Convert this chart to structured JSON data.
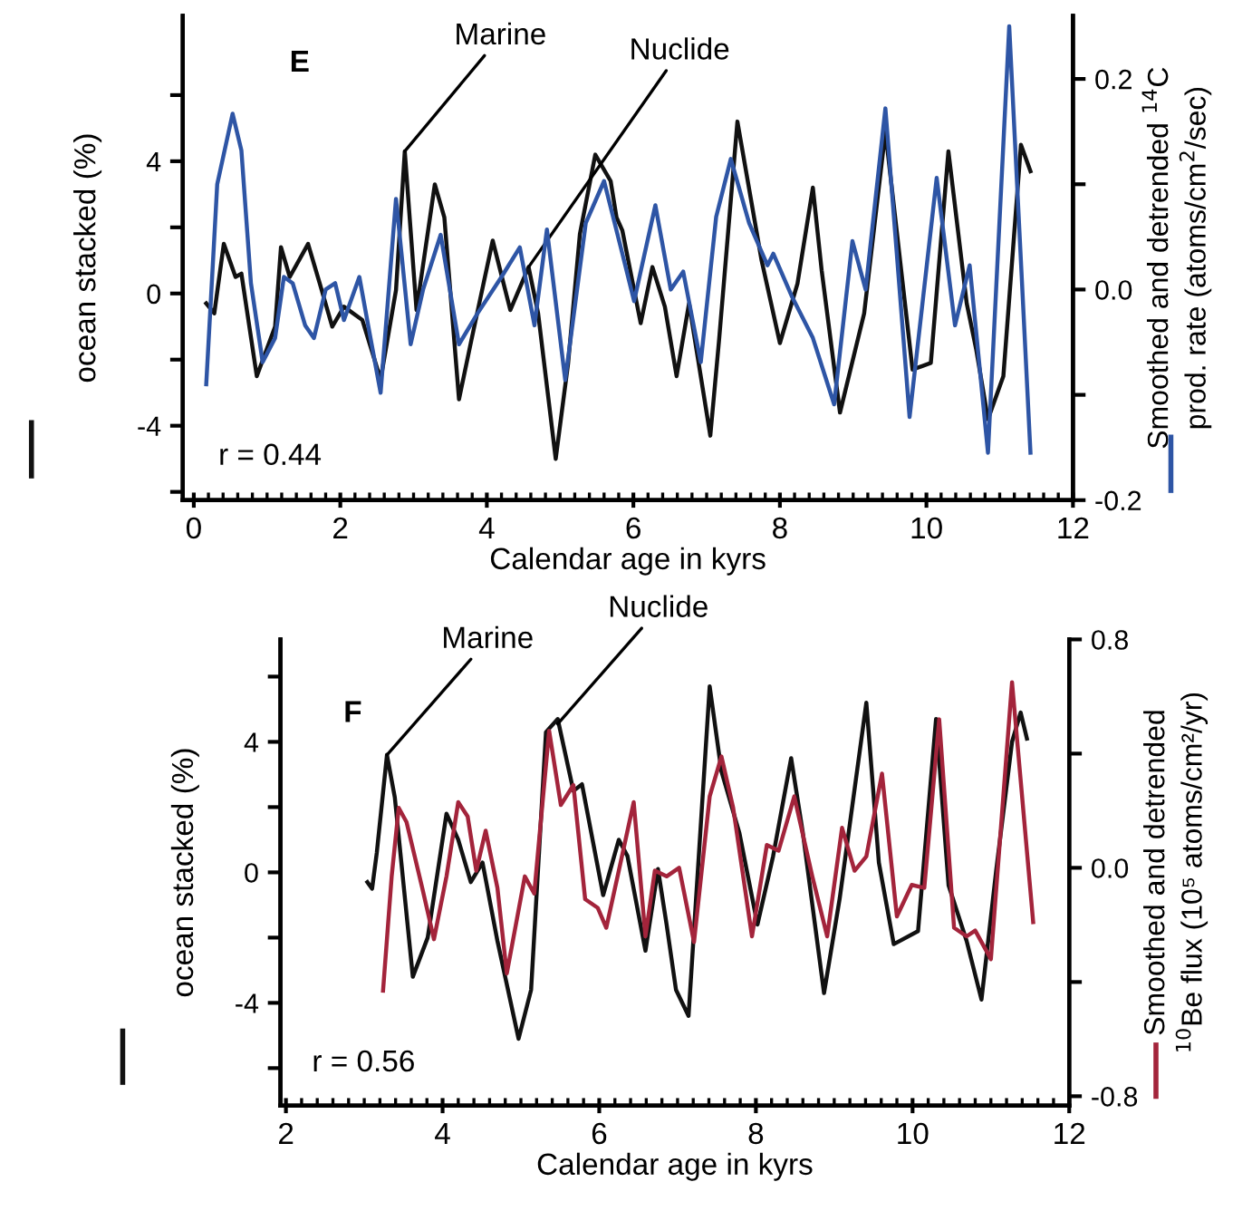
{
  "chart_data": [
    {
      "type": "line",
      "xlabel": "Calendar age in kyrs",
      "ylabel": "ocean stacked (%)",
      "y2label": "Smoothed and detrended $^{14}$C\nprod. rate (atoms/cm$^{2}$/sec)",
      "annotations": [
        "E",
        "r = 0.44",
        {
          "text": "Marine",
          "x": 2.88,
          "y": 4.3
        },
        {
          "text": "Nuclide",
          "x": 4.57,
          "y": 0.8
        }
      ],
      "xlim": [
        -0.15,
        12
      ],
      "ylim": [
        -6.25,
        8.4
      ],
      "y2lim": [
        -0.2,
        0.26
      ],
      "xticks": [
        0,
        2,
        4,
        6,
        8,
        10,
        12,
        {
          "value": 0.2,
          "label": null
        },
        {
          "value": 0.4,
          "label": null
        },
        {
          "value": 0.6,
          "label": null
        },
        {
          "value": 0.8,
          "label": null
        },
        {
          "value": 1,
          "label": null
        },
        {
          "value": 1.2,
          "label": null
        },
        {
          "value": 1.4,
          "label": null
        },
        {
          "value": 1.6,
          "label": null
        },
        {
          "value": 1.8,
          "label": null
        },
        {
          "value": 2.2,
          "label": null
        },
        {
          "value": 2.4,
          "label": null
        },
        {
          "value": 2.6,
          "label": null
        },
        {
          "value": 2.8,
          "label": null
        },
        {
          "value": 3,
          "label": null
        },
        {
          "value": 3.2,
          "label": null
        },
        {
          "value": 3.4,
          "label": null
        },
        {
          "value": 3.6,
          "label": null
        },
        {
          "value": 3.8,
          "label": null
        },
        {
          "value": 4.2,
          "label": null
        },
        {
          "value": 4.4,
          "label": null
        },
        {
          "value": 4.6,
          "label": null
        },
        {
          "value": 4.8,
          "label": null
        },
        {
          "value": 5,
          "label": null
        },
        {
          "value": 5.2,
          "label": null
        },
        {
          "value": 5.4,
          "label": null
        },
        {
          "value": 5.6,
          "label": null
        },
        {
          "value": 5.8,
          "label": null
        },
        {
          "value": 6.2,
          "label": null
        },
        {
          "value": 6.4,
          "label": null
        },
        {
          "value": 6.6,
          "label": null
        },
        {
          "value": 6.8,
          "label": null
        },
        {
          "value": 7,
          "label": null
        },
        {
          "value": 7.2,
          "label": null
        },
        {
          "value": 7.4,
          "label": null
        },
        {
          "value": 7.6,
          "label": null
        },
        {
          "value": 7.8,
          "label": null
        },
        {
          "value": 8.2,
          "label": null
        },
        {
          "value": 8.4,
          "label": null
        },
        {
          "value": 8.6,
          "label": null
        },
        {
          "value": 8.8,
          "label": null
        },
        {
          "value": 9,
          "label": null
        },
        {
          "value": 9.2,
          "label": null
        },
        {
          "value": 9.4,
          "label": null
        },
        {
          "value": 9.6,
          "label": null
        },
        {
          "value": 9.8,
          "label": null
        },
        {
          "value": 10.2,
          "label": null
        },
        {
          "value": 10.4,
          "label": null
        },
        {
          "value": 10.6,
          "label": null
        },
        {
          "value": 10.8,
          "label": null
        },
        {
          "value": 11,
          "label": null
        },
        {
          "value": 11.2,
          "label": null
        },
        {
          "value": 11.4,
          "label": null
        },
        {
          "value": 11.6,
          "label": null
        },
        {
          "value": 11.8,
          "label": null
        }
      ],
      "yticks": [
        {
          "value": -6,
          "label": null
        },
        -4,
        {
          "value": -2,
          "label": null
        },
        0,
        {
          "value": 2,
          "label": null
        },
        4,
        {
          "value": 6,
          "label": null
        }
      ],
      "y2ticks": [
        {
          "value": -0.2,
          "label": "-0.2"
        },
        {
          "value": -0.1,
          "label": null
        },
        {
          "value": 0,
          "label": "0.0"
        },
        {
          "value": 0.1,
          "label": null
        },
        {
          "value": 0.2,
          "label": "0.2"
        }
      ],
      "grid": false,
      "legend": false,
      "line_style": "solid",
      "marker": "none",
      "series": [
        {
          "color": "#111111",
          "x": [
            0.17,
            0.28,
            0.41,
            0.49,
            0.57,
            0.65,
            0.86,
            1.11,
            1.19,
            1.31,
            1.56,
            1.72,
            1.89,
            2.05,
            2.3,
            2.55,
            2.76,
            2.88,
            3.04,
            3.29,
            3.42,
            3.62,
            3.79,
            4.08,
            4.32,
            4.57,
            4.7,
            4.94,
            5.11,
            5.27,
            5.48,
            5.69,
            5.77,
            5.85,
            6.1,
            6.26,
            6.43,
            6.59,
            6.76,
            7.05,
            7.17,
            7.42,
            7.75,
            8.0,
            8.24,
            8.45,
            8.57,
            8.82,
            9.15,
            9.44,
            9.81,
            10.06,
            10.3,
            10.55,
            10.68,
            10.84,
            11.05,
            11.29,
            11.42
          ],
          "values": [
            -0.3,
            -0.6,
            1.5,
            1.0,
            0.5,
            0.6,
            -2.5,
            -1.0,
            1.4,
            0.5,
            1.5,
            0.3,
            -1.0,
            -0.4,
            -0.8,
            -2.6,
            0.1,
            4.3,
            -0.5,
            3.3,
            2.3,
            -3.2,
            -1.4,
            1.6,
            -0.5,
            0.8,
            -0.6,
            -5.0,
            -2.1,
            1.8,
            4.2,
            3.4,
            2.3,
            1.9,
            -0.9,
            0.8,
            -0.4,
            -2.5,
            -0.3,
            -4.3,
            -1.4,
            5.2,
            1.0,
            -1.5,
            0.3,
            3.2,
            0.7,
            -3.6,
            -0.6,
            4.9,
            -2.3,
            -2.1,
            4.3,
            -0.3,
            -1.7,
            -3.8,
            -2.5,
            4.5,
            3.7
          ]
        },
        {
          "color": "#2e55a5",
          "axis": "y2",
          "x": [
            0.17,
            0.32,
            0.53,
            0.65,
            0.78,
            0.94,
            1.11,
            1.23,
            1.35,
            1.52,
            1.64,
            1.8,
            1.93,
            2.05,
            2.26,
            2.38,
            2.55,
            2.76,
            2.96,
            3.13,
            3.37,
            3.62,
            3.87,
            4.2,
            4.45,
            4.65,
            4.82,
            5.07,
            5.35,
            5.6,
            5.85,
            6.01,
            6.3,
            6.51,
            6.68,
            6.92,
            7.13,
            7.33,
            7.58,
            7.83,
            7.91,
            8.16,
            8.45,
            8.74,
            8.99,
            9.17,
            9.44,
            9.77,
            10.14,
            10.39,
            10.59,
            10.84,
            11.13,
            11.42
          ],
          "values": [
            -0.09,
            0.1,
            0.167,
            0.132,
            0.006,
            -0.069,
            -0.046,
            0.012,
            0.006,
            -0.034,
            -0.046,
            0.0,
            0.006,
            -0.029,
            0.012,
            -0.034,
            -0.098,
            0.086,
            -0.052,
            0.0,
            0.052,
            -0.052,
            -0.023,
            0.012,
            0.04,
            -0.034,
            0.057,
            -0.086,
            0.063,
            0.103,
            0.034,
            -0.011,
            0.08,
            0.0,
            0.017,
            -0.069,
            0.069,
            0.124,
            0.063,
            0.023,
            0.034,
            -0.006,
            -0.046,
            -0.109,
            0.046,
            0.0,
            0.172,
            -0.121,
            0.106,
            -0.034,
            0.023,
            -0.155,
            0.25,
            -0.155
          ]
        }
      ]
    },
    {
      "type": "line",
      "xlabel": "Calendar age in kyrs",
      "ylabel": "ocean stacked (%)",
      "y2label": "Smoothed and detrended\n$^{10}$Be flux (10⁵ atoms/cm²/yr)",
      "annotations": [
        "F",
        "r = 0.56",
        {
          "text": "Marine",
          "x": 3.29,
          "y": 3.6
        },
        {
          "text": "Nuclide",
          "x": 5.47,
          "y": 4.55
        }
      ],
      "xlim": [
        1.93,
        12
      ],
      "ylim": [
        -7.15,
        7.14
      ],
      "y2lim": [
        -0.833,
        0.8
      ],
      "xticks": [
        2,
        4,
        6,
        8,
        10,
        12,
        {
          "value": 2.2,
          "label": null
        },
        {
          "value": 2.4,
          "label": null
        },
        {
          "value": 2.6,
          "label": null
        },
        {
          "value": 2.8,
          "label": null
        },
        {
          "value": 3,
          "label": null
        },
        {
          "value": 3.2,
          "label": null
        },
        {
          "value": 3.4,
          "label": null
        },
        {
          "value": 3.6,
          "label": null
        },
        {
          "value": 3.8,
          "label": null
        },
        {
          "value": 4.2,
          "label": null
        },
        {
          "value": 4.4,
          "label": null
        },
        {
          "value": 4.6,
          "label": null
        },
        {
          "value": 4.8,
          "label": null
        },
        {
          "value": 5,
          "label": null
        },
        {
          "value": 5.2,
          "label": null
        },
        {
          "value": 5.4,
          "label": null
        },
        {
          "value": 5.6,
          "label": null
        },
        {
          "value": 5.8,
          "label": null
        },
        {
          "value": 6.2,
          "label": null
        },
        {
          "value": 6.4,
          "label": null
        },
        {
          "value": 6.6,
          "label": null
        },
        {
          "value": 6.8,
          "label": null
        },
        {
          "value": 7,
          "label": null
        },
        {
          "value": 7.2,
          "label": null
        },
        {
          "value": 7.4,
          "label": null
        },
        {
          "value": 7.6,
          "label": null
        },
        {
          "value": 7.8,
          "label": null
        },
        {
          "value": 8.2,
          "label": null
        },
        {
          "value": 8.4,
          "label": null
        },
        {
          "value": 8.6,
          "label": null
        },
        {
          "value": 8.8,
          "label": null
        },
        {
          "value": 9,
          "label": null
        },
        {
          "value": 9.2,
          "label": null
        },
        {
          "value": 9.4,
          "label": null
        },
        {
          "value": 9.6,
          "label": null
        },
        {
          "value": 9.8,
          "label": null
        },
        {
          "value": 10.2,
          "label": null
        },
        {
          "value": 10.4,
          "label": null
        },
        {
          "value": 10.6,
          "label": null
        },
        {
          "value": 10.8,
          "label": null
        },
        {
          "value": 11,
          "label": null
        },
        {
          "value": 11.2,
          "label": null
        },
        {
          "value": 11.4,
          "label": null
        },
        {
          "value": 11.6,
          "label": null
        },
        {
          "value": 11.8,
          "label": null
        }
      ],
      "yticks": [
        {
          "value": -6,
          "label": null
        },
        -4,
        {
          "value": -2,
          "label": null
        },
        0,
        {
          "value": 2,
          "label": null
        },
        4,
        {
          "value": 6,
          "label": null
        }
      ],
      "y2ticks": [
        {
          "value": -0.8,
          "label": "-0.8"
        },
        {
          "value": -0.4,
          "label": null
        },
        {
          "value": 0,
          "label": "0.0"
        },
        {
          "value": 0.4,
          "label": null
        },
        {
          "value": 0.8,
          "label": "0.8"
        }
      ],
      "grid": false,
      "legend": false,
      "line_style": "solid",
      "marker": "none",
      "series": [
        {
          "color": "#111111",
          "x": [
            3.04,
            3.1,
            3.16,
            3.29,
            3.39,
            3.62,
            3.81,
            4.05,
            4.2,
            4.36,
            4.51,
            4.7,
            4.97,
            5.13,
            5.32,
            5.47,
            5.67,
            5.78,
            6.05,
            6.25,
            6.36,
            6.59,
            6.75,
            6.86,
            6.98,
            7.14,
            7.41,
            7.56,
            7.79,
            8.02,
            8.22,
            8.45,
            8.6,
            8.87,
            9.07,
            9.41,
            9.57,
            9.76,
            10.07,
            10.3,
            10.46,
            10.69,
            10.88,
            11.07,
            11.27,
            11.38,
            11.46
          ],
          "values": [
            -0.3,
            -0.5,
            0.6,
            3.6,
            2.3,
            -3.2,
            -2.0,
            1.8,
            1.0,
            -0.3,
            0.3,
            -2.1,
            -5.1,
            -3.6,
            4.3,
            4.7,
            2.5,
            2.7,
            -0.7,
            1.0,
            0.5,
            -2.4,
            0.1,
            -1.6,
            -3.6,
            -4.4,
            5.7,
            3.1,
            1.2,
            -1.6,
            0.5,
            3.5,
            1.2,
            -3.7,
            -0.8,
            5.2,
            0.3,
            -2.2,
            -1.8,
            4.7,
            -0.4,
            -2.1,
            -3.9,
            0.1,
            4.0,
            4.9,
            4.1
          ]
        },
        {
          "color": "#a3243b",
          "axis": "y2",
          "x": [
            3.24,
            3.35,
            3.44,
            3.54,
            3.74,
            3.89,
            4.05,
            4.2,
            4.32,
            4.43,
            4.55,
            4.7,
            4.82,
            5.05,
            5.17,
            5.36,
            5.51,
            5.67,
            5.82,
            5.98,
            6.09,
            6.25,
            6.44,
            6.59,
            6.71,
            6.86,
            7.02,
            7.21,
            7.41,
            7.56,
            7.71,
            7.95,
            8.14,
            8.29,
            8.49,
            8.72,
            8.91,
            9.1,
            9.26,
            9.41,
            9.61,
            9.8,
            9.99,
            10.15,
            10.34,
            10.53,
            10.69,
            10.8,
            11.0,
            11.27,
            11.54
          ],
          "values": [
            -0.43,
            -0.03,
            0.21,
            0.16,
            -0.07,
            -0.25,
            -0.03,
            0.23,
            0.18,
            -0.01,
            0.13,
            -0.07,
            -0.37,
            -0.03,
            -0.09,
            0.48,
            0.22,
            0.29,
            -0.11,
            -0.14,
            -0.21,
            -0.01,
            0.23,
            -0.24,
            -0.01,
            -0.03,
            0.0,
            -0.26,
            0.25,
            0.39,
            0.21,
            -0.24,
            0.08,
            0.06,
            0.25,
            -0.03,
            -0.24,
            0.14,
            -0.01,
            0.04,
            0.33,
            -0.17,
            -0.06,
            -0.07,
            0.52,
            -0.21,
            -0.24,
            -0.22,
            -0.32,
            0.65,
            -0.19
          ]
        }
      ]
    }
  ]
}
